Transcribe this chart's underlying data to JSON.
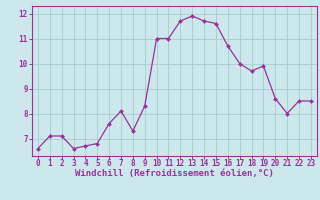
{
  "x": [
    0,
    1,
    2,
    3,
    4,
    5,
    6,
    7,
    8,
    9,
    10,
    11,
    12,
    13,
    14,
    15,
    16,
    17,
    18,
    19,
    20,
    21,
    22,
    23
  ],
  "y": [
    6.6,
    7.1,
    7.1,
    6.6,
    6.7,
    6.8,
    7.6,
    8.1,
    7.3,
    8.3,
    11.0,
    11.0,
    11.7,
    11.9,
    11.7,
    11.6,
    10.7,
    10.0,
    9.7,
    9.9,
    8.6,
    8.0,
    8.5,
    8.5
  ],
  "line_color": "#993399",
  "marker_color": "#993399",
  "bg_color": "#cce8ec",
  "grid_color": "#aacccc",
  "xlabel": "Windchill (Refroidissement éolien,°C)",
  "xlim": [
    -0.5,
    23.5
  ],
  "ylim": [
    6.3,
    12.3
  ],
  "yticks": [
    7,
    8,
    9,
    10,
    11,
    12
  ],
  "xticks": [
    0,
    1,
    2,
    3,
    4,
    5,
    6,
    7,
    8,
    9,
    10,
    11,
    12,
    13,
    14,
    15,
    16,
    17,
    18,
    19,
    20,
    21,
    22,
    23
  ],
  "font_color": "#993399",
  "tick_fontsize": 5.5,
  "xlabel_fontsize": 6.5,
  "spine_color": "#993399"
}
